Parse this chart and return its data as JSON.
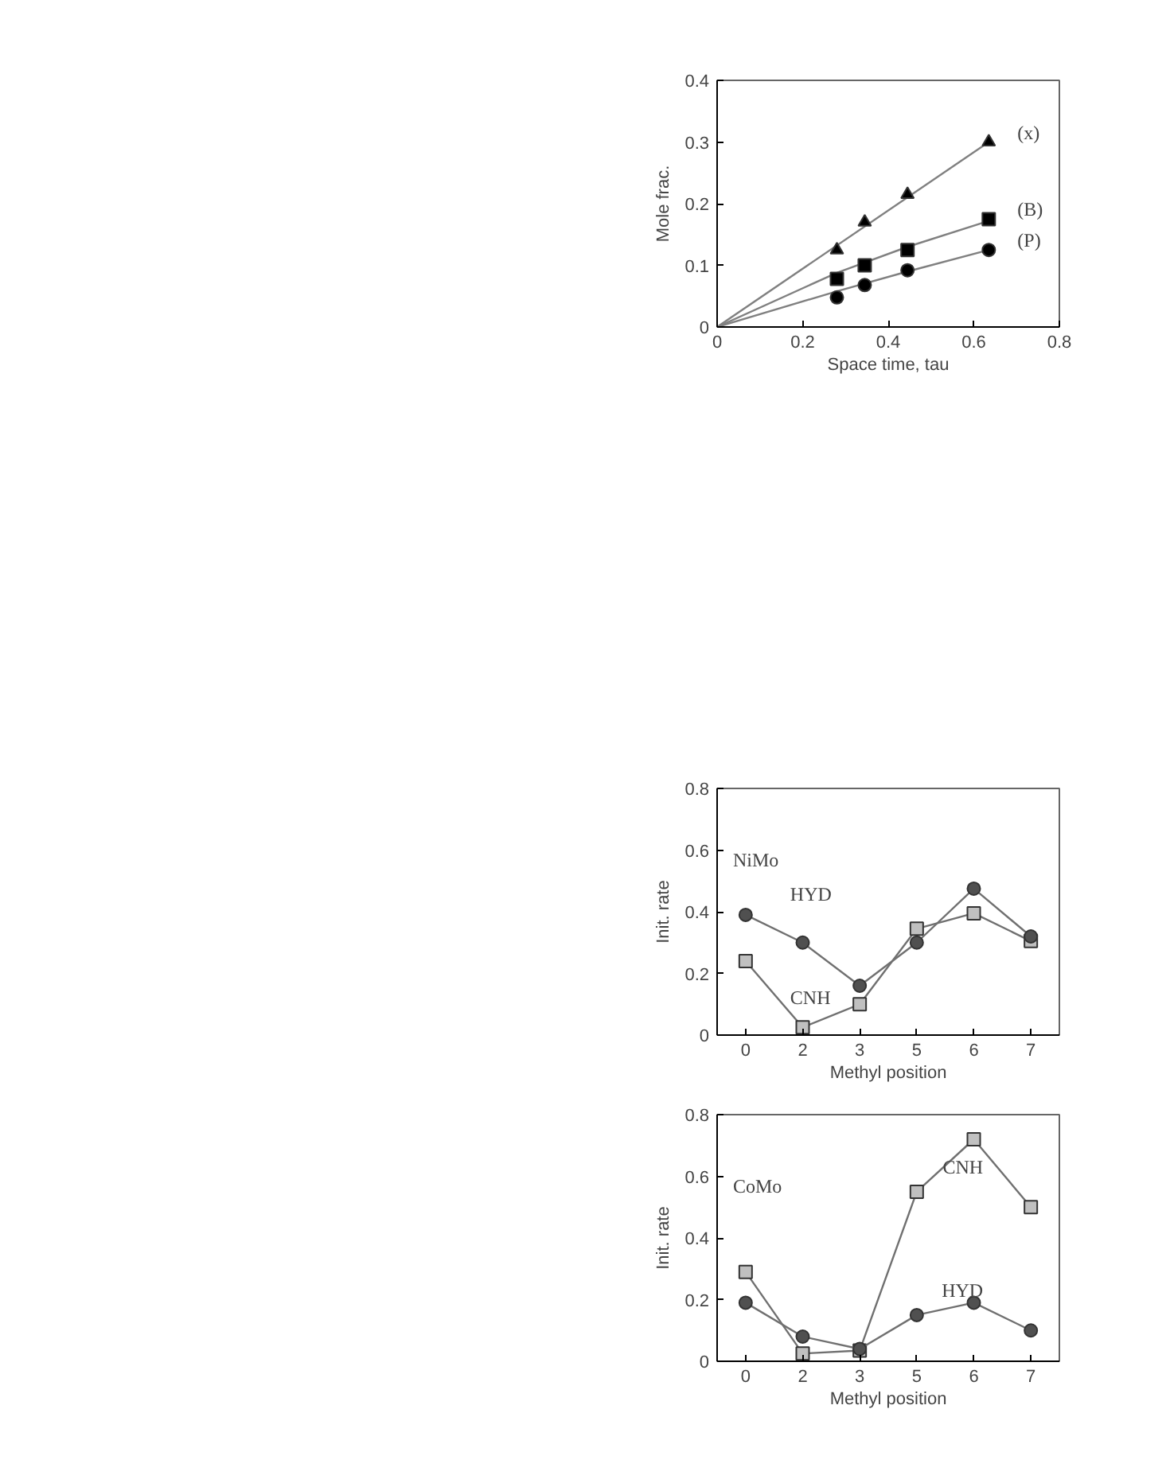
{
  "chart_data": [
    {
      "type": "scatter",
      "xlabel": "Space time, tau",
      "ylabel": "Mole frac.",
      "xlim": [
        0,
        0.8
      ],
      "ylim": [
        0,
        0.4
      ],
      "xticks": [
        0,
        0.2,
        0.4,
        0.6,
        0.8
      ],
      "yticks": [
        0,
        0.1,
        0.2,
        0.3,
        0.4
      ],
      "grid": false,
      "legend": false,
      "series": [
        {
          "name": "(x)",
          "type": "scatter",
          "marker": "triangle",
          "color": "#000000",
          "x": [
            0.28,
            0.345,
            0.445,
            0.635
          ],
          "values": [
            0.125,
            0.17,
            0.215,
            0.3
          ]
        },
        {
          "name": "(B)",
          "type": "scatter",
          "marker": "square",
          "color": "#000000",
          "x": [
            0.28,
            0.345,
            0.445,
            0.635
          ],
          "values": [
            0.078,
            0.1,
            0.125,
            0.175
          ]
        },
        {
          "name": "(P)",
          "type": "scatter",
          "marker": "circle",
          "color": "#000000",
          "x": [
            0.28,
            0.345,
            0.445,
            0.635
          ],
          "values": [
            0.048,
            0.068,
            0.092,
            0.125
          ]
        },
        {
          "type": "line",
          "color": "#808080",
          "x": [
            0,
            0.635
          ],
          "values": [
            0,
            0.3
          ]
        },
        {
          "type": "line",
          "color": "#808080",
          "x": [
            0,
            0.28,
            0.445,
            0.635
          ],
          "values": [
            0,
            0.088,
            0.13,
            0.172
          ]
        },
        {
          "type": "line",
          "color": "#808080",
          "x": [
            0,
            0.28,
            0.445,
            0.635
          ],
          "values": [
            0,
            0.058,
            0.09,
            0.125
          ]
        }
      ]
    },
    {
      "type": "line",
      "xlabel": "Methyl position",
      "ylabel": "Init. rate",
      "categories": [
        "0",
        "2",
        "3",
        "5",
        "6",
        "7"
      ],
      "ylim": [
        0,
        0.8
      ],
      "yticks": [
        0,
        0.2,
        0.4,
        0.6,
        0.8
      ],
      "grid": false,
      "legend": false,
      "annotations": [
        "NiMo"
      ],
      "series": [
        {
          "name": "HYD",
          "marker": "circle",
          "color": "#505050",
          "values": [
            0.39,
            0.3,
            0.16,
            0.3,
            0.475,
            0.32
          ]
        },
        {
          "name": "CNH",
          "marker": "square",
          "color": "#c0c0c0",
          "values": [
            0.24,
            0.025,
            0.1,
            0.345,
            0.395,
            0.305
          ]
        }
      ]
    },
    {
      "type": "line",
      "xlabel": "Methyl position",
      "ylabel": "Init. rate",
      "categories": [
        "0",
        "2",
        "3",
        "5",
        "6",
        "7"
      ],
      "ylim": [
        0,
        0.8
      ],
      "yticks": [
        0,
        0.2,
        0.4,
        0.6,
        0.8
      ],
      "grid": false,
      "legend": false,
      "annotations": [
        "CoMo"
      ],
      "series": [
        {
          "name": "HYD",
          "marker": "circle",
          "color": "#505050",
          "values": [
            0.19,
            0.08,
            0.04,
            0.15,
            0.19,
            0.1
          ]
        },
        {
          "name": "CNH",
          "marker": "square",
          "color": "#c0c0c0",
          "values": [
            0.29,
            0.025,
            0.035,
            0.55,
            0.72,
            0.5
          ]
        }
      ]
    }
  ]
}
